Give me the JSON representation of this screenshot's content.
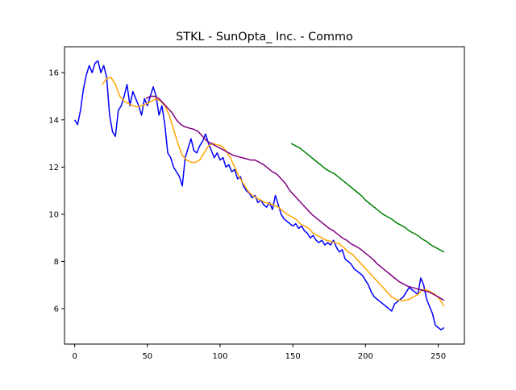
{
  "chart_data": {
    "type": "line",
    "title": "STKL - SunOpta_ Inc. - Commo",
    "xlabel": "",
    "ylabel": "",
    "xlim": [
      -7,
      268
    ],
    "ylim": [
      4.5,
      17.1
    ],
    "xticks": [
      0,
      50,
      100,
      150,
      200,
      250
    ],
    "yticks": [
      6,
      8,
      10,
      12,
      14,
      16
    ],
    "grid": false,
    "legend": "none",
    "series": [
      {
        "color": "#0000ff",
        "points": [
          [
            0,
            14.0
          ],
          [
            2,
            13.8
          ],
          [
            4,
            14.4
          ],
          [
            6,
            15.3
          ],
          [
            8,
            15.9
          ],
          [
            10,
            16.3
          ],
          [
            12,
            16.0
          ],
          [
            14,
            16.4
          ],
          [
            16,
            16.5
          ],
          [
            18,
            16.0
          ],
          [
            20,
            16.3
          ],
          [
            22,
            15.8
          ],
          [
            24,
            14.2
          ],
          [
            26,
            13.5
          ],
          [
            28,
            13.3
          ],
          [
            30,
            14.4
          ],
          [
            32,
            14.6
          ],
          [
            34,
            15.0
          ],
          [
            36,
            15.5
          ],
          [
            38,
            14.6
          ],
          [
            40,
            15.2
          ],
          [
            42,
            14.9
          ],
          [
            44,
            14.6
          ],
          [
            46,
            14.2
          ],
          [
            48,
            14.9
          ],
          [
            50,
            14.6
          ],
          [
            52,
            15.0
          ],
          [
            54,
            15.4
          ],
          [
            56,
            15.0
          ],
          [
            58,
            14.2
          ],
          [
            60,
            14.6
          ],
          [
            62,
            13.8
          ],
          [
            64,
            12.6
          ],
          [
            66,
            12.4
          ],
          [
            68,
            12.0
          ],
          [
            70,
            11.8
          ],
          [
            72,
            11.6
          ],
          [
            74,
            11.2
          ],
          [
            76,
            12.4
          ],
          [
            78,
            12.8
          ],
          [
            80,
            13.2
          ],
          [
            82,
            12.7
          ],
          [
            84,
            12.6
          ],
          [
            86,
            12.9
          ],
          [
            88,
            13.1
          ],
          [
            90,
            13.4
          ],
          [
            92,
            13.0
          ],
          [
            94,
            12.7
          ],
          [
            96,
            12.4
          ],
          [
            98,
            12.6
          ],
          [
            100,
            12.3
          ],
          [
            102,
            12.4
          ],
          [
            104,
            12.0
          ],
          [
            106,
            12.1
          ],
          [
            108,
            11.8
          ],
          [
            110,
            11.9
          ],
          [
            112,
            11.5
          ],
          [
            114,
            11.6
          ],
          [
            116,
            11.2
          ],
          [
            118,
            11.0
          ],
          [
            120,
            10.9
          ],
          [
            122,
            10.7
          ],
          [
            124,
            10.8
          ],
          [
            126,
            10.5
          ],
          [
            128,
            10.6
          ],
          [
            130,
            10.4
          ],
          [
            132,
            10.3
          ],
          [
            134,
            10.5
          ],
          [
            136,
            10.2
          ],
          [
            138,
            10.8
          ],
          [
            140,
            10.4
          ],
          [
            142,
            10.0
          ],
          [
            144,
            9.8
          ],
          [
            146,
            9.7
          ],
          [
            148,
            9.6
          ],
          [
            150,
            9.5
          ],
          [
            152,
            9.6
          ],
          [
            154,
            9.4
          ],
          [
            156,
            9.5
          ],
          [
            158,
            9.3
          ],
          [
            160,
            9.2
          ],
          [
            162,
            9.0
          ],
          [
            164,
            9.1
          ],
          [
            166,
            8.9
          ],
          [
            168,
            8.8
          ],
          [
            170,
            8.9
          ],
          [
            172,
            8.7
          ],
          [
            174,
            8.8
          ],
          [
            176,
            8.7
          ],
          [
            178,
            8.9
          ],
          [
            180,
            8.6
          ],
          [
            182,
            8.4
          ],
          [
            184,
            8.5
          ],
          [
            186,
            8.1
          ],
          [
            188,
            8.0
          ],
          [
            190,
            7.9
          ],
          [
            192,
            7.7
          ],
          [
            194,
            7.6
          ],
          [
            196,
            7.5
          ],
          [
            198,
            7.4
          ],
          [
            200,
            7.2
          ],
          [
            202,
            7.0
          ],
          [
            204,
            6.7
          ],
          [
            206,
            6.5
          ],
          [
            208,
            6.4
          ],
          [
            210,
            6.3
          ],
          [
            212,
            6.2
          ],
          [
            214,
            6.1
          ],
          [
            216,
            6.0
          ],
          [
            218,
            5.9
          ],
          [
            220,
            6.2
          ],
          [
            222,
            6.3
          ],
          [
            224,
            6.4
          ],
          [
            226,
            6.5
          ],
          [
            228,
            6.7
          ],
          [
            230,
            6.9
          ],
          [
            232,
            6.8
          ],
          [
            234,
            6.7
          ],
          [
            236,
            6.6
          ],
          [
            238,
            7.3
          ],
          [
            240,
            7.0
          ],
          [
            242,
            6.4
          ],
          [
            244,
            6.1
          ],
          [
            246,
            5.8
          ],
          [
            248,
            5.3
          ],
          [
            250,
            5.2
          ],
          [
            252,
            5.1
          ],
          [
            254,
            5.2
          ]
        ]
      },
      {
        "color": "#ffa500",
        "points": [
          [
            19,
            15.5
          ],
          [
            22,
            15.75
          ],
          [
            25,
            15.8
          ],
          [
            28,
            15.5
          ],
          [
            31,
            15.0
          ],
          [
            34,
            14.8
          ],
          [
            37,
            14.7
          ],
          [
            40,
            14.6
          ],
          [
            43,
            14.55
          ],
          [
            46,
            14.6
          ],
          [
            50,
            14.7
          ],
          [
            53,
            14.8
          ],
          [
            56,
            14.9
          ],
          [
            59,
            14.8
          ],
          [
            62,
            14.6
          ],
          [
            65,
            14.2
          ],
          [
            68,
            13.6
          ],
          [
            71,
            13.0
          ],
          [
            74,
            12.5
          ],
          [
            77,
            12.3
          ],
          [
            80,
            12.2
          ],
          [
            83,
            12.2
          ],
          [
            86,
            12.3
          ],
          [
            89,
            12.6
          ],
          [
            92,
            12.9
          ],
          [
            95,
            13.0
          ],
          [
            98,
            12.95
          ],
          [
            101,
            12.9
          ],
          [
            104,
            12.7
          ],
          [
            107,
            12.4
          ],
          [
            110,
            12.0
          ],
          [
            113,
            11.6
          ],
          [
            116,
            11.3
          ],
          [
            119,
            11.0
          ],
          [
            122,
            10.8
          ],
          [
            125,
            10.7
          ],
          [
            128,
            10.6
          ],
          [
            131,
            10.5
          ],
          [
            134,
            10.45
          ],
          [
            137,
            10.4
          ],
          [
            140,
            10.3
          ],
          [
            143,
            10.15
          ],
          [
            146,
            10.0
          ],
          [
            149,
            9.9
          ],
          [
            152,
            9.8
          ],
          [
            155,
            9.6
          ],
          [
            158,
            9.5
          ],
          [
            161,
            9.4
          ],
          [
            164,
            9.2
          ],
          [
            167,
            9.1
          ],
          [
            170,
            9.0
          ],
          [
            173,
            8.9
          ],
          [
            176,
            8.85
          ],
          [
            179,
            8.8
          ],
          [
            182,
            8.75
          ],
          [
            185,
            8.6
          ],
          [
            188,
            8.4
          ],
          [
            191,
            8.3
          ],
          [
            194,
            8.1
          ],
          [
            197,
            7.9
          ],
          [
            200,
            7.7
          ],
          [
            203,
            7.5
          ],
          [
            206,
            7.3
          ],
          [
            209,
            7.1
          ],
          [
            212,
            6.9
          ],
          [
            215,
            6.7
          ],
          [
            218,
            6.5
          ],
          [
            221,
            6.4
          ],
          [
            224,
            6.35
          ],
          [
            227,
            6.35
          ],
          [
            230,
            6.4
          ],
          [
            233,
            6.5
          ],
          [
            236,
            6.6
          ],
          [
            239,
            6.8
          ],
          [
            242,
            6.8
          ],
          [
            245,
            6.7
          ],
          [
            248,
            6.6
          ],
          [
            251,
            6.4
          ],
          [
            254,
            6.1
          ]
        ]
      },
      {
        "color": "#800080",
        "points": [
          [
            49,
            14.9
          ],
          [
            52,
            15.0
          ],
          [
            55,
            15.0
          ],
          [
            58,
            14.9
          ],
          [
            61,
            14.7
          ],
          [
            64,
            14.5
          ],
          [
            67,
            14.3
          ],
          [
            70,
            14.0
          ],
          [
            73,
            13.8
          ],
          [
            76,
            13.7
          ],
          [
            79,
            13.65
          ],
          [
            82,
            13.6
          ],
          [
            85,
            13.5
          ],
          [
            88,
            13.3
          ],
          [
            91,
            13.1
          ],
          [
            94,
            13.0
          ],
          [
            97,
            12.9
          ],
          [
            100,
            12.8
          ],
          [
            103,
            12.7
          ],
          [
            106,
            12.6
          ],
          [
            109,
            12.5
          ],
          [
            112,
            12.45
          ],
          [
            115,
            12.4
          ],
          [
            118,
            12.35
          ],
          [
            121,
            12.3
          ],
          [
            124,
            12.3
          ],
          [
            127,
            12.2
          ],
          [
            130,
            12.1
          ],
          [
            133,
            11.95
          ],
          [
            136,
            11.8
          ],
          [
            139,
            11.7
          ],
          [
            142,
            11.5
          ],
          [
            145,
            11.3
          ],
          [
            148,
            11.0
          ],
          [
            151,
            10.8
          ],
          [
            154,
            10.6
          ],
          [
            157,
            10.4
          ],
          [
            160,
            10.2
          ],
          [
            163,
            10.0
          ],
          [
            166,
            9.85
          ],
          [
            169,
            9.7
          ],
          [
            172,
            9.55
          ],
          [
            175,
            9.4
          ],
          [
            178,
            9.3
          ],
          [
            181,
            9.15
          ],
          [
            184,
            9.0
          ],
          [
            187,
            8.9
          ],
          [
            190,
            8.75
          ],
          [
            193,
            8.65
          ],
          [
            196,
            8.55
          ],
          [
            199,
            8.4
          ],
          [
            202,
            8.25
          ],
          [
            205,
            8.1
          ],
          [
            208,
            7.9
          ],
          [
            211,
            7.75
          ],
          [
            214,
            7.6
          ],
          [
            217,
            7.45
          ],
          [
            220,
            7.3
          ],
          [
            223,
            7.15
          ],
          [
            226,
            7.05
          ],
          [
            229,
            6.95
          ],
          [
            232,
            6.9
          ],
          [
            235,
            6.85
          ],
          [
            238,
            6.8
          ],
          [
            241,
            6.75
          ],
          [
            244,
            6.7
          ],
          [
            247,
            6.6
          ],
          [
            250,
            6.5
          ],
          [
            254,
            6.35
          ]
        ]
      },
      {
        "color": "#008000",
        "points": [
          [
            149,
            13.0
          ],
          [
            152,
            12.9
          ],
          [
            155,
            12.8
          ],
          [
            158,
            12.65
          ],
          [
            161,
            12.5
          ],
          [
            164,
            12.35
          ],
          [
            167,
            12.2
          ],
          [
            170,
            12.05
          ],
          [
            173,
            11.9
          ],
          [
            176,
            11.8
          ],
          [
            179,
            11.7
          ],
          [
            182,
            11.55
          ],
          [
            185,
            11.4
          ],
          [
            188,
            11.25
          ],
          [
            191,
            11.1
          ],
          [
            194,
            10.95
          ],
          [
            197,
            10.8
          ],
          [
            200,
            10.6
          ],
          [
            203,
            10.45
          ],
          [
            206,
            10.3
          ],
          [
            209,
            10.15
          ],
          [
            212,
            10.0
          ],
          [
            215,
            9.9
          ],
          [
            218,
            9.8
          ],
          [
            221,
            9.65
          ],
          [
            224,
            9.55
          ],
          [
            227,
            9.45
          ],
          [
            230,
            9.3
          ],
          [
            233,
            9.2
          ],
          [
            236,
            9.1
          ],
          [
            239,
            8.95
          ],
          [
            242,
            8.85
          ],
          [
            245,
            8.7
          ],
          [
            248,
            8.6
          ],
          [
            251,
            8.5
          ],
          [
            254,
            8.4
          ]
        ]
      }
    ]
  }
}
